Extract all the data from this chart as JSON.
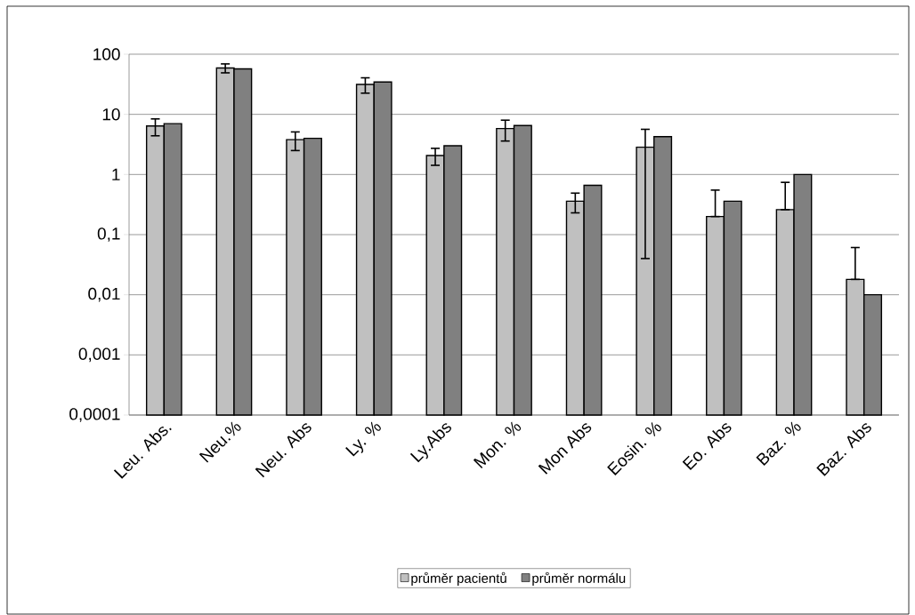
{
  "chart_data": {
    "type": "bar",
    "categories": [
      "Leu. Abs.",
      "Neu.%",
      "Neu. Abs",
      "Ly. %",
      "Ly.Abs",
      "Mon. %",
      "Mon Abs",
      "Eosin. %",
      "Eo. Abs",
      "Baz. %",
      "Baz. Abs"
    ],
    "series": [
      {
        "name": "průměr pacientů",
        "color": "#c0c0c0",
        "values": [
          6.4,
          59,
          3.8,
          31.5,
          2.07,
          5.8,
          0.36,
          2.84,
          0.2,
          0.26,
          0.018
        ],
        "errors": [
          2,
          10,
          1.3,
          9,
          0.65,
          2.2,
          0.13,
          2.8,
          [
            0.2,
            0.55
          ],
          [
            0.26,
            0.74
          ],
          [
            0.018,
            0.061
          ]
        ]
      },
      {
        "name": "průměr normálu",
        "color": "#808080",
        "values": [
          7.0,
          57,
          4.0,
          34.5,
          3.0,
          6.5,
          0.66,
          4.26,
          0.36,
          1.0,
          0.01
        ]
      }
    ],
    "log": true,
    "ylim": [
      0.0001,
      100
    ],
    "yticks": [
      {
        "value": 0.0001,
        "label": "0,0001"
      },
      {
        "value": 0.001,
        "label": "0,001"
      },
      {
        "value": 0.01,
        "label": "0,01"
      },
      {
        "value": 0.1,
        "label": "0,1"
      },
      1,
      10,
      100
    ],
    "grid": "y",
    "legend": "bottom"
  }
}
